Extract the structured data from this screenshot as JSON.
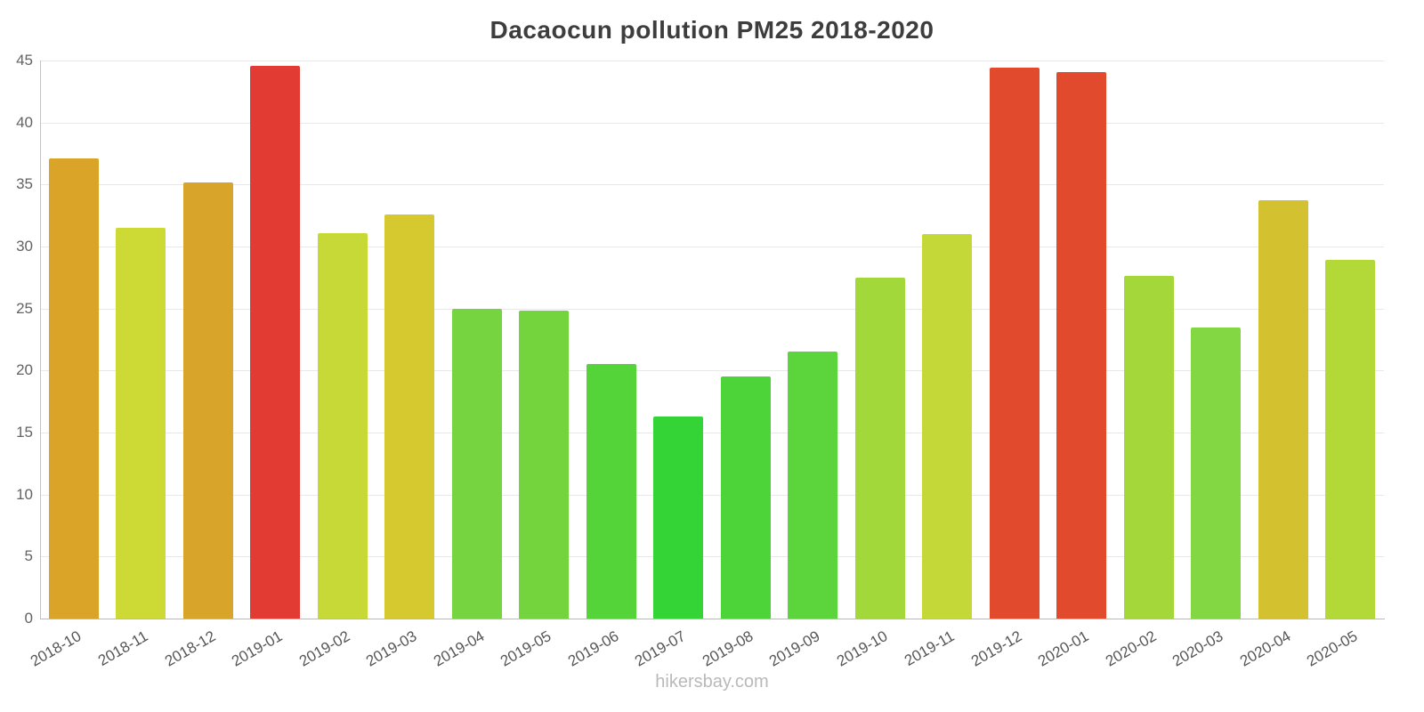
{
  "chart_data": {
    "type": "bar",
    "title": "Dacaocun pollution PM25 2018-2020",
    "xlabel": "",
    "ylabel": "",
    "ylim": [
      0,
      45
    ],
    "ytick_step": 5,
    "grid": true,
    "legend": "none",
    "categories": [
      "2018-10",
      "2018-11",
      "2018-12",
      "2019-01",
      "2019-02",
      "2019-03",
      "2019-04",
      "2019-05",
      "2019-06",
      "2019-07",
      "2019-08",
      "2019-09",
      "2019-10",
      "2019-11",
      "2019-12",
      "2020-01",
      "2020-02",
      "2020-03",
      "2020-04",
      "2020-05"
    ],
    "values": [
      37.1,
      31.5,
      35.2,
      44.6,
      31.1,
      32.6,
      25.0,
      24.8,
      20.5,
      16.3,
      19.5,
      21.5,
      27.5,
      31.0,
      44.4,
      44.1,
      27.6,
      23.5,
      33.7,
      28.9
    ],
    "bar_colors": [
      "#d9a427",
      "#cdda36",
      "#d8a52a",
      "#e23b33",
      "#c6d937",
      "#d5c92f",
      "#75d43f",
      "#73d43e",
      "#55d43a",
      "#35d436",
      "#4cd438",
      "#5cd43b",
      "#a2d83a",
      "#c4d937",
      "#e24a2e",
      "#e24a2e",
      "#a4d83a",
      "#83d742",
      "#d4c12f",
      "#b3d938"
    ],
    "ytick_labels": [
      "0",
      "5",
      "10",
      "15",
      "20",
      "25",
      "30",
      "35",
      "40",
      "45"
    ]
  },
  "footer": {
    "text": "hikersbay.com"
  }
}
